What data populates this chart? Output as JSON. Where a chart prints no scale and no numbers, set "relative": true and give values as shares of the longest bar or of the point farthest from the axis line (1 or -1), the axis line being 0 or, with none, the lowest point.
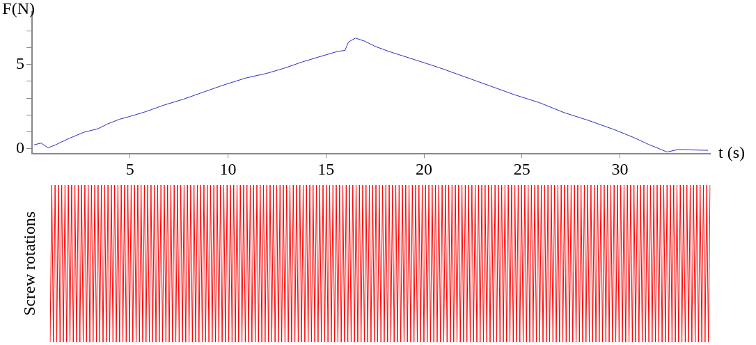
{
  "chart_data": [
    {
      "type": "line",
      "xlabel": "t (s)",
      "ylabel": "F(N)",
      "marker": "none",
      "xlim": [
        0,
        34.6
      ],
      "xticks": [
        5,
        10,
        15,
        20,
        25,
        30
      ],
      "ylim": [
        -0.3,
        8.1
      ],
      "yticks": [
        0,
        {
          "value": 1,
          "label": null
        },
        {
          "value": 2,
          "label": null
        },
        {
          "value": 3,
          "label": null
        },
        {
          "value": 4,
          "label": null
        },
        5,
        {
          "value": 6,
          "label": null
        },
        {
          "value": 7,
          "label": null
        }
      ],
      "x": [
        0.1,
        0.46,
        0.82,
        1.19,
        1.9,
        2.64,
        3.37,
        3.85,
        4.46,
        5.0,
        5.8,
        6.76,
        7.73,
        8.7,
        9.8,
        10.9,
        11.97,
        12.8,
        13.8,
        14.6,
        15.6,
        15.97,
        16.15,
        16.5,
        16.95,
        17.55,
        18.26,
        19.53,
        20.8,
        22.07,
        23.34,
        24.6,
        25.88,
        27.14,
        28.4,
        29.68,
        30.7,
        31.46,
        31.97,
        32.41,
        32.98,
        33.74,
        34.5
      ],
      "series": [
        {
          "color": "#2b2bc8",
          "values": [
            0.23,
            0.34,
            0.06,
            0.23,
            0.62,
            0.98,
            1.19,
            1.47,
            1.75,
            1.92,
            2.2,
            2.6,
            2.94,
            3.34,
            3.79,
            4.19,
            4.47,
            4.75,
            5.15,
            5.43,
            5.77,
            5.83,
            6.33,
            6.56,
            6.39,
            6.05,
            5.75,
            5.28,
            4.8,
            4.27,
            3.74,
            3.21,
            2.74,
            2.15,
            1.68,
            1.15,
            0.67,
            0.26,
            0.02,
            -0.19,
            -0.04,
            -0.07,
            -0.09
          ]
        }
      ]
    },
    {
      "type": "line",
      "ylabel": "Screw rotations",
      "relative": true,
      "marker": "none",
      "tick_labels": false,
      "categories": [
        null,
        null,
        null,
        null,
        null,
        null,
        null,
        null,
        null,
        null,
        null,
        null,
        null,
        null,
        null,
        null,
        null,
        null,
        null,
        null,
        null,
        null,
        null,
        null,
        null,
        null,
        null,
        null,
        null,
        null,
        null,
        null,
        null,
        null,
        null,
        null,
        null,
        null,
        null,
        null,
        null,
        null,
        null,
        null,
        null,
        null,
        null,
        null,
        null,
        null,
        null,
        null,
        null,
        null,
        null,
        null,
        null,
        null,
        null,
        null,
        null,
        null,
        null,
        null,
        null,
        null,
        null,
        null,
        null,
        null,
        null,
        null,
        null,
        null,
        null,
        null,
        null,
        null,
        null,
        null,
        null,
        null,
        null,
        null,
        null,
        null,
        null,
        null,
        null,
        null,
        null,
        null,
        null,
        null,
        null,
        null,
        null,
        null,
        null,
        null,
        null,
        null,
        null,
        null,
        null,
        null,
        null,
        null,
        null,
        null,
        null,
        null,
        null,
        null,
        null,
        null,
        null,
        null,
        null,
        null,
        null,
        null,
        null,
        null,
        null,
        null,
        null,
        null,
        null,
        null,
        null,
        null,
        null,
        null,
        null,
        null,
        null,
        null,
        null,
        null,
        null,
        null,
        null,
        null,
        null,
        null,
        null,
        null,
        null,
        null,
        null,
        null,
        null,
        null,
        null,
        null,
        null,
        null,
        null,
        null,
        null,
        null,
        null,
        null,
        null,
        null,
        null,
        null,
        null,
        null,
        null,
        null,
        null,
        null,
        null,
        null,
        null,
        null,
        null,
        null,
        null,
        null,
        null,
        null,
        null,
        null,
        null,
        null,
        null,
        null,
        null,
        null,
        null,
        null,
        null,
        null,
        null,
        null,
        null,
        null,
        null,
        null,
        null,
        null,
        null,
        null,
        null,
        null,
        null,
        null,
        null,
        null,
        null,
        null,
        null,
        null,
        null,
        null,
        null,
        null,
        null,
        null,
        null,
        null,
        null,
        null,
        null,
        null,
        null,
        null,
        null,
        null,
        null,
        null,
        null,
        null,
        null,
        null,
        null,
        null,
        null,
        null,
        null,
        null,
        null,
        null,
        null,
        null,
        null,
        null,
        null,
        null,
        null,
        null,
        null,
        null,
        null,
        null,
        null,
        null,
        null,
        null,
        null,
        null,
        null,
        null,
        null,
        null,
        null,
        null,
        null,
        null,
        null,
        null,
        null,
        null,
        null,
        null,
        null,
        null,
        null,
        null,
        null,
        null,
        null,
        null,
        null,
        null,
        null,
        null,
        null,
        null,
        null,
        null,
        null,
        null,
        null,
        null,
        null,
        null,
        null,
        null,
        null,
        null,
        null,
        null,
        null,
        null,
        null,
        null,
        null,
        null,
        null,
        null,
        null,
        null,
        null,
        null,
        null,
        null,
        null,
        null,
        null,
        null,
        null,
        null,
        null,
        null,
        null,
        null,
        null,
        null,
        null,
        null,
        null,
        null,
        null,
        null,
        null,
        null,
        null,
        null,
        null,
        null,
        null,
        null,
        null,
        null,
        null,
        null,
        null,
        null,
        null,
        null,
        null,
        null,
        null,
        null,
        null,
        null,
        null,
        null,
        null,
        null,
        null,
        null,
        null,
        null,
        null,
        null,
        null,
        null,
        null,
        null,
        null,
        null,
        null,
        null,
        null,
        null,
        null,
        null,
        null,
        null,
        null,
        null,
        null,
        null,
        null,
        null,
        null,
        null,
        null,
        null,
        null,
        null,
        null,
        null,
        null,
        null
      ],
      "series": [
        {
          "color": "#ff0000",
          "values": [
            0,
            1,
            0,
            1,
            0,
            1,
            0,
            1,
            0,
            1,
            0,
            1,
            0,
            1,
            0,
            1,
            0,
            1,
            0,
            1,
            0,
            1,
            0,
            1,
            0,
            1,
            0,
            1,
            0,
            1,
            0,
            1,
            0,
            1,
            0,
            1,
            0,
            1,
            0,
            1,
            0,
            1,
            0,
            1,
            0,
            1,
            0,
            1,
            0,
            1,
            0,
            1,
            0,
            1,
            0,
            1,
            0,
            1,
            0,
            1,
            0,
            1,
            0,
            1,
            0,
            1,
            0,
            1,
            0,
            1,
            0,
            1,
            0,
            1,
            0,
            1,
            0,
            1,
            0,
            1,
            0,
            1,
            0,
            1,
            0,
            1,
            0,
            1,
            0,
            1,
            0,
            1,
            0,
            1,
            0,
            1,
            0,
            1,
            0,
            1,
            0,
            1,
            0,
            1,
            0,
            1,
            0,
            1,
            0,
            1,
            0,
            1,
            0,
            1,
            0,
            1,
            0,
            1,
            0,
            1,
            0,
            1,
            0,
            1,
            0,
            1,
            0,
            1,
            0,
            1,
            0,
            1,
            0,
            1,
            0,
            1,
            0,
            1,
            0,
            1,
            0,
            1,
            0,
            1,
            0,
            1,
            0,
            1,
            0,
            1,
            0,
            1,
            0,
            1,
            0,
            1,
            0,
            1,
            0,
            1,
            0,
            1,
            0,
            1,
            0,
            1,
            0,
            1,
            0,
            1,
            0,
            1,
            0,
            1,
            0,
            1,
            0,
            1,
            0,
            1,
            0,
            1,
            0,
            1,
            0,
            1,
            0,
            1,
            0,
            1,
            0,
            1,
            0,
            1,
            0,
            1,
            0,
            1,
            0,
            1,
            0,
            1,
            0,
            1,
            0,
            1,
            0,
            1,
            0,
            1,
            0,
            1,
            0,
            1,
            0,
            1,
            0,
            1,
            0,
            1,
            0,
            1,
            0,
            1,
            0,
            1,
            0,
            1,
            0,
            1,
            0,
            1,
            0,
            1,
            0,
            1,
            0,
            1,
            0,
            1,
            0,
            1,
            0,
            1,
            0,
            1,
            0,
            1,
            0,
            1,
            0,
            1,
            0,
            1,
            0,
            1,
            0,
            1,
            0,
            1,
            0,
            1,
            0,
            1,
            0,
            1,
            0,
            1,
            0,
            1,
            0,
            1,
            0,
            1,
            0,
            1,
            0,
            1,
            0,
            1,
            0,
            1,
            0,
            1,
            0,
            1,
            0,
            1,
            0,
            1,
            0,
            1,
            0,
            1,
            0,
            1,
            0,
            1,
            0,
            1,
            0,
            1,
            0,
            1,
            0,
            1,
            0,
            1,
            0,
            1,
            0,
            1,
            0,
            1,
            0,
            1,
            0,
            1,
            0,
            1,
            0,
            1,
            0,
            1,
            0,
            1,
            0,
            1,
            0,
            1,
            0,
            1,
            0,
            1,
            0,
            1,
            0,
            1,
            0,
            1,
            0,
            1,
            0,
            1,
            0,
            1,
            0,
            1,
            0,
            1,
            0,
            1,
            0,
            1,
            0,
            1,
            0,
            1,
            0,
            1,
            0,
            1,
            0,
            1,
            0,
            1,
            0,
            1,
            0,
            1,
            0,
            1,
            0,
            1,
            0,
            1,
            0,
            1,
            0,
            1,
            0,
            1,
            0,
            1,
            0,
            1,
            0,
            1,
            0,
            1,
            0,
            1,
            0,
            1,
            0,
            1,
            0,
            1,
            0,
            1
          ]
        }
      ]
    }
  ]
}
